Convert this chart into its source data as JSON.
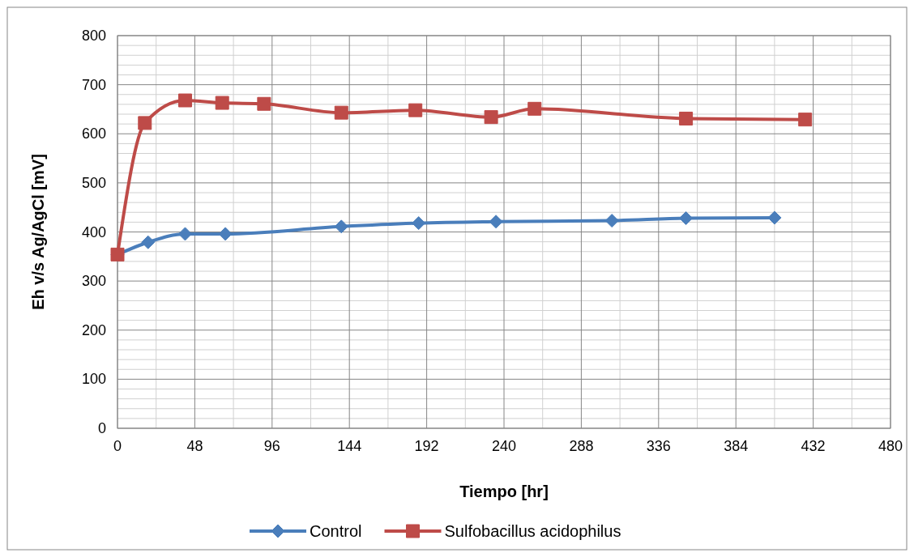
{
  "chart_data": {
    "type": "line",
    "xlabel": "Tiempo [hr]",
    "ylabel": "Eh v/s Ag/AgCl [mV]",
    "xlim": [
      0,
      480
    ],
    "xticks": [
      0,
      48,
      96,
      144,
      192,
      240,
      288,
      336,
      384,
      432,
      480
    ],
    "ylim": [
      0,
      800
    ],
    "yticks": [
      0,
      100,
      200,
      300,
      400,
      500,
      600,
      700,
      800
    ],
    "grid": true,
    "legend": "bottom",
    "series": [
      {
        "name": "Control",
        "color": "#4a7ebb",
        "marker": "diamond",
        "x": [
          0,
          19,
          42,
          67,
          139,
          187,
          235,
          307,
          353,
          408
        ],
        "values": [
          354,
          379,
          396,
          396,
          411,
          418,
          421,
          423,
          428,
          429
        ]
      },
      {
        "name": "Sulfobacillus acidophilus",
        "color": "#be4b48",
        "marker": "square",
        "x": [
          0,
          17,
          42,
          65,
          91,
          139,
          185,
          232,
          259,
          353,
          427
        ],
        "values": [
          354,
          622,
          668,
          663,
          661,
          643,
          648,
          634,
          651,
          631,
          629
        ]
      }
    ]
  }
}
